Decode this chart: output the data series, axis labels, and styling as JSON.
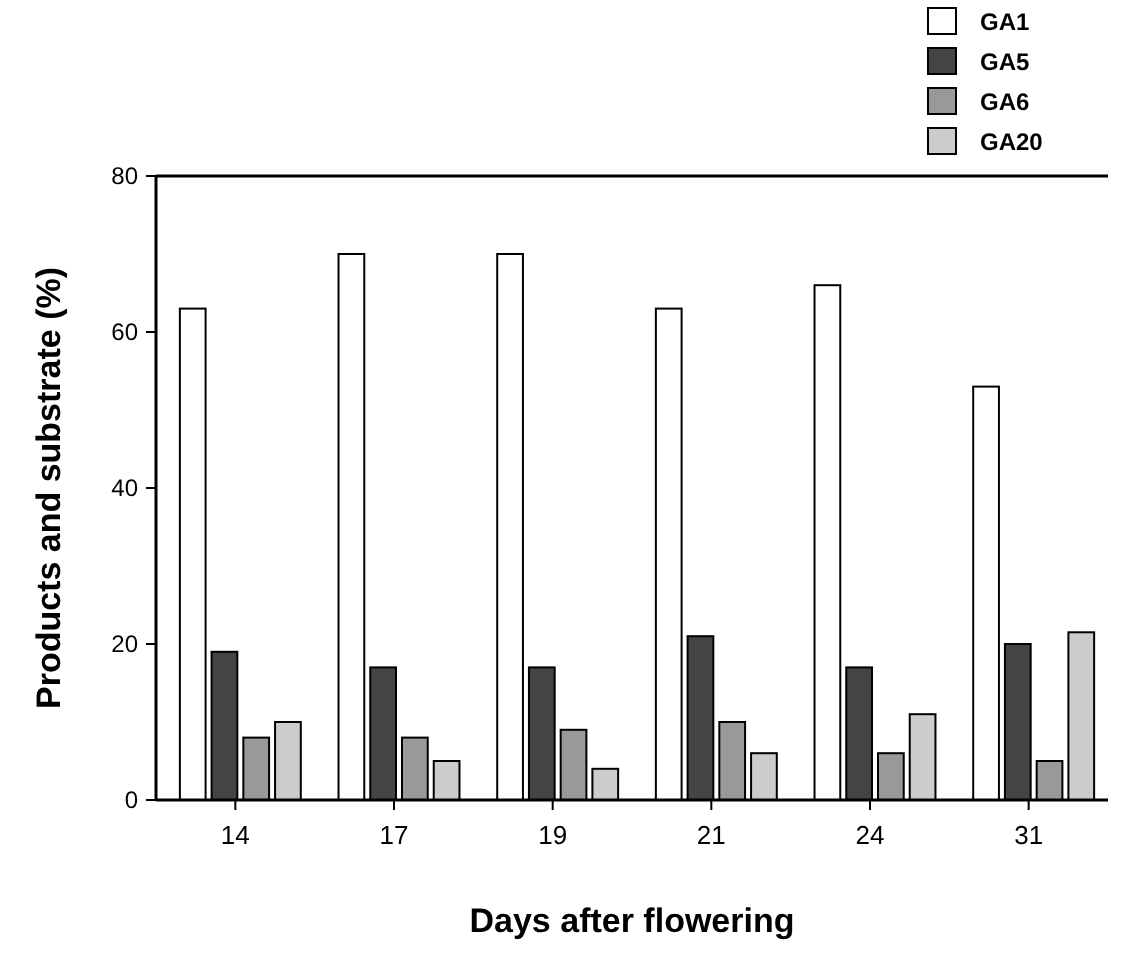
{
  "chart_data": {
    "type": "bar",
    "xlabel": "Days after flowering",
    "ylabel": "Products and substrate (%)",
    "categories": [
      "14",
      "17",
      "19",
      "21",
      "24",
      "31"
    ],
    "series": [
      {
        "name": "GA1",
        "color": "#ffffff",
        "values": [
          63,
          70,
          70,
          63,
          66,
          53
        ]
      },
      {
        "name": "GA5",
        "color": "#444444",
        "values": [
          19,
          17,
          17,
          21,
          17,
          20
        ]
      },
      {
        "name": "GA6",
        "color": "#999999",
        "values": [
          8,
          8,
          9,
          10,
          6,
          5
        ]
      },
      {
        "name": "GA20",
        "color": "#cccccc",
        "values": [
          10,
          5,
          4,
          6,
          11,
          21.5
        ]
      }
    ],
    "ylim": [
      0,
      80
    ],
    "yticks": [
      0,
      20,
      40,
      60,
      80
    ],
    "legend": "top right",
    "grid": false
  }
}
